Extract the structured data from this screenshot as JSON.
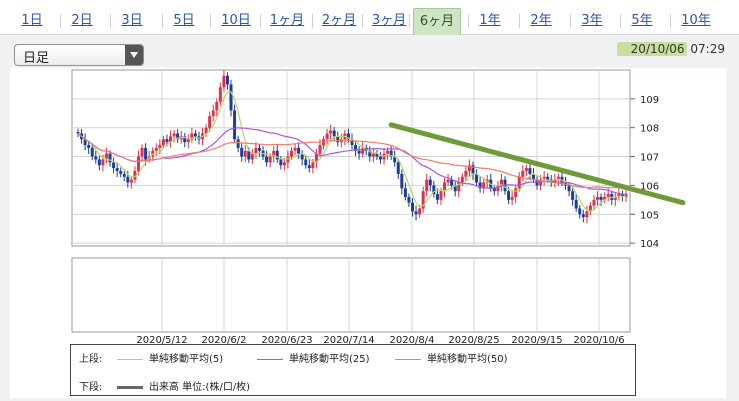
{
  "period_tabs": [
    {
      "label": "1日",
      "active": false
    },
    {
      "label": "2日",
      "active": false
    },
    {
      "label": "3日",
      "active": false
    },
    {
      "label": "5日",
      "active": false
    },
    {
      "label": "10日",
      "active": false
    },
    {
      "label": "1ヶ月",
      "active": false
    },
    {
      "label": "2ヶ月",
      "active": false
    },
    {
      "label": "3ヶ月",
      "active": false
    },
    {
      "label": "6ヶ月",
      "active": true
    },
    {
      "label": "1年",
      "active": false
    },
    {
      "label": "2年",
      "active": false
    },
    {
      "label": "3年",
      "active": false
    },
    {
      "label": "5年",
      "active": false
    },
    {
      "label": "10年",
      "active": false
    }
  ],
  "candle_select": {
    "value": "日足"
  },
  "timestamp": {
    "date": "20/10/06",
    "time": "07:29"
  },
  "legend": {
    "upper_label": "上段:",
    "lower_label": "下段:",
    "ma5": "単純移動平均(5)",
    "ma25": "単純移動平均(25)",
    "ma50": "単純移動平均(50)",
    "volume": "出来高 単位:(株/口/枚)"
  },
  "colors": {
    "up": "#e0304a",
    "down": "#1c3e96",
    "ma5": "#b9d46c",
    "ma25": "#a35be0",
    "ma50": "#f07d6a",
    "trendline": "#6f9a3a",
    "volume": "#666666",
    "accent": "#cfe3c5"
  },
  "chart_data": {
    "type": "candlestick",
    "x_tick_labels": [
      "2020/5/12",
      "2020/6/2",
      "2020/6/23",
      "2020/7/14",
      "2020/8/4",
      "2020/8/25",
      "2020/9/15",
      "2020/10/6"
    ],
    "y_tick_labels": [
      "104",
      "105",
      "106",
      "107",
      "108",
      "109"
    ],
    "ylim": [
      103.9,
      110
    ],
    "grid": true,
    "close": [
      107.8,
      107.6,
      107.4,
      107.3,
      107.0,
      106.9,
      106.7,
      106.9,
      107.1,
      106.8,
      106.6,
      106.5,
      106.4,
      106.3,
      106.1,
      106.2,
      106.5,
      107.0,
      107.3,
      106.9,
      107.0,
      107.2,
      107.3,
      107.4,
      107.6,
      107.5,
      107.7,
      107.8,
      107.6,
      107.7,
      107.5,
      107.6,
      107.8,
      107.7,
      107.6,
      107.8,
      108.0,
      108.4,
      108.6,
      108.9,
      109.4,
      109.8,
      109.5,
      108.6,
      107.6,
      107.3,
      107.0,
      107.2,
      106.9,
      107.1,
      107.3,
      107.2,
      107.0,
      106.8,
      107.0,
      107.2,
      106.9,
      106.7,
      106.8,
      107.0,
      107.2,
      107.3,
      107.1,
      106.9,
      106.7,
      106.6,
      106.8,
      107.1,
      107.4,
      107.6,
      107.8,
      107.9,
      107.7,
      107.5,
      107.6,
      107.8,
      107.6,
      107.4,
      107.2,
      107.1,
      107.3,
      107.2,
      107.0,
      107.1,
      107.0,
      106.9,
      107.1,
      107.2,
      107.0,
      106.8,
      106.4,
      105.9,
      105.6,
      105.4,
      105.1,
      105.0,
      105.2,
      105.8,
      106.2,
      106.0,
      105.7,
      105.5,
      105.8,
      106.1,
      106.2,
      106.0,
      105.8,
      106.1,
      106.3,
      106.5,
      106.7,
      106.4,
      106.1,
      105.9,
      106.1,
      106.2,
      105.9,
      105.8,
      106.0,
      106.2,
      105.8,
      105.5,
      105.6,
      105.9,
      106.3,
      106.5,
      106.6,
      106.4,
      106.2,
      106.0,
      106.2,
      106.3,
      106.2,
      106.1,
      106.2,
      106.3,
      106.1,
      106.0,
      105.8,
      105.5,
      105.2,
      105.0,
      104.9,
      105.1,
      105.3,
      105.5,
      105.6,
      105.5,
      105.6,
      105.7,
      105.5,
      105.6,
      105.7,
      105.6,
      105.7
    ],
    "ma_series": [
      {
        "name": "単純移動平均(5)",
        "period": 5
      },
      {
        "name": "単純移動平均(25)",
        "period": 25
      },
      {
        "name": "単純移動平均(50)",
        "period": 50
      }
    ],
    "trendline": {
      "start": {
        "x_index": 88,
        "y": 108.1
      },
      "end": {
        "x_index": 170,
        "y": 105.4
      }
    }
  }
}
